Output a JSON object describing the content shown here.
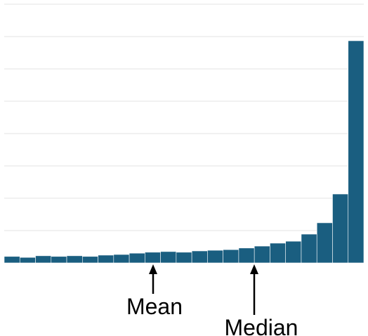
{
  "chart_data": {
    "type": "bar",
    "categories": [
      null,
      null,
      null,
      null,
      null,
      null,
      null,
      null,
      null,
      null,
      null,
      null,
      null,
      null,
      null,
      null,
      null,
      null,
      null,
      null,
      null,
      null,
      null
    ],
    "values": [
      0.2,
      0.17,
      0.22,
      0.2,
      0.22,
      0.2,
      0.24,
      0.26,
      0.3,
      0.33,
      0.35,
      0.33,
      0.37,
      0.39,
      0.41,
      0.46,
      0.52,
      0.61,
      0.67,
      0.89,
      1.24,
      2.13,
      6.87
    ],
    "color": "#1a5e80",
    "ylim": [
      0,
      8
    ],
    "yticks": [
      0,
      1,
      2,
      3,
      4,
      5,
      6,
      7,
      8
    ],
    "grid": true,
    "annotations": [
      "Mean",
      "Median"
    ]
  }
}
